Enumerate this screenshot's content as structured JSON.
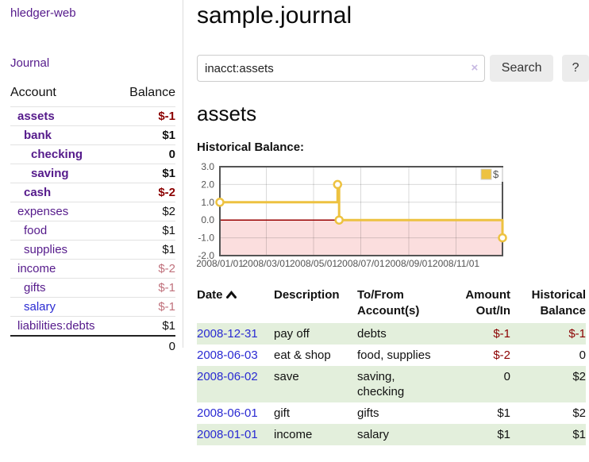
{
  "app": {
    "title": "hledger-web",
    "nav_journal": "Journal"
  },
  "colors": {
    "link_purple": "#551a8b",
    "link_blue": "#2a2ad2",
    "negative_strong": "#8b0000",
    "negative_soft": "#c0717c",
    "row_stripe_green": "#e3efdc",
    "button_gray": "#ececec",
    "chart_line_yellow": "#edc240",
    "chart_negative_pink": "#fbdede",
    "chart_zero_line": "#990000"
  },
  "sidebar": {
    "accounts_header": {
      "account": "Account",
      "balance": "Balance"
    },
    "accounts": [
      {
        "name": "assets",
        "level": 0,
        "emph": true,
        "name_color": "purple",
        "balance": "$-1",
        "balance_color": "dark-red"
      },
      {
        "name": "bank",
        "level": 1,
        "emph": true,
        "name_color": "purple",
        "balance": "$1",
        "balance_color": "black"
      },
      {
        "name": "checking",
        "level": 2,
        "emph": true,
        "name_color": "purple",
        "balance": "0",
        "balance_color": "black"
      },
      {
        "name": "saving",
        "level": 2,
        "emph": true,
        "name_color": "purple",
        "balance": "$1",
        "balance_color": "black"
      },
      {
        "name": "cash",
        "level": 1,
        "emph": true,
        "name_color": "purple",
        "balance": "$-2",
        "balance_color": "dark-red"
      },
      {
        "name": "expenses",
        "level": 0,
        "emph": false,
        "name_color": "purple",
        "balance": "$2",
        "balance_color": "black"
      },
      {
        "name": "food",
        "level": 1,
        "emph": false,
        "name_color": "purple",
        "balance": "$1",
        "balance_color": "black"
      },
      {
        "name": "supplies",
        "level": 1,
        "emph": false,
        "name_color": "purple",
        "balance": "$1",
        "balance_color": "black"
      },
      {
        "name": "income",
        "level": 0,
        "emph": false,
        "name_color": "purple",
        "balance": "$-2",
        "balance_color": "faded-red"
      },
      {
        "name": "gifts",
        "level": 1,
        "emph": false,
        "name_color": "purple",
        "balance": "$-1",
        "balance_color": "faded-red"
      },
      {
        "name": "salary",
        "level": 1,
        "emph": false,
        "name_color": "blue",
        "balance": "$-1",
        "balance_color": "faded-red"
      },
      {
        "name": "liabilities:debts",
        "level": 0,
        "emph": false,
        "name_color": "purple",
        "balance": "$1",
        "balance_color": "black"
      }
    ],
    "total": "0"
  },
  "main": {
    "title": "sample.journal",
    "search": {
      "value": "inacct:assets",
      "clear_icon": "×",
      "search_label": "Search",
      "help_label": "?"
    },
    "account_heading": "assets",
    "chart_label": "Historical Balance:"
  },
  "chart_data": {
    "type": "line",
    "style": "step",
    "title": "Historical Balance:",
    "series": [
      {
        "name": "$",
        "color": "#edc240",
        "points": [
          [
            "2008-01-01",
            1
          ],
          [
            "2008-06-01",
            2
          ],
          [
            "2008-06-03",
            0
          ],
          [
            "2008-12-31",
            -1
          ]
        ]
      }
    ],
    "x_ticks": [
      "2008/01/01",
      "2008/03/01",
      "2008/05/01",
      "2008/07/01",
      "2008/09/01",
      "2008/11/01"
    ],
    "y_ticks": [
      "3.0",
      "2.0",
      "1.0",
      "0.0",
      "-1.0",
      "-2.0"
    ],
    "ylim": [
      -2,
      3
    ],
    "xlim": [
      "2008-01-01",
      "2008-12-31"
    ],
    "grid": true,
    "negative_fill": "#fbdede",
    "zero_line_color": "#990000",
    "legend": {
      "label": "$",
      "position": "top-right"
    }
  },
  "table": {
    "headers": {
      "date": "Date",
      "description": "Description",
      "accounts_line1": "To/From",
      "accounts_line2": "Account(s)",
      "amount_line1": "Amount",
      "amount_line2": "Out/In",
      "balance_line1": "Historical",
      "balance_line2": "Balance"
    },
    "rows": [
      {
        "date": "2008-12-31",
        "description": "pay off",
        "accounts": [
          "debts"
        ],
        "amount": "$-1",
        "amount_negative": true,
        "balance": "$-1",
        "balance_negative": true
      },
      {
        "date": "2008-06-03",
        "description": "eat & shop",
        "accounts": [
          "food, supplies"
        ],
        "amount": "$-2",
        "amount_negative": true,
        "balance": "0",
        "balance_negative": false
      },
      {
        "date": "2008-06-02",
        "description": "save",
        "accounts": [
          "saving,",
          "checking"
        ],
        "amount": "0",
        "amount_negative": false,
        "balance": "$2",
        "balance_negative": false
      },
      {
        "date": "2008-06-01",
        "description": "gift",
        "accounts": [
          "gifts"
        ],
        "amount": "$1",
        "amount_negative": false,
        "balance": "$2",
        "balance_negative": false
      },
      {
        "date": "2008-01-01",
        "description": "income",
        "accounts": [
          "salary"
        ],
        "amount": "$1",
        "amount_negative": false,
        "balance": "$1",
        "balance_negative": false
      }
    ]
  }
}
